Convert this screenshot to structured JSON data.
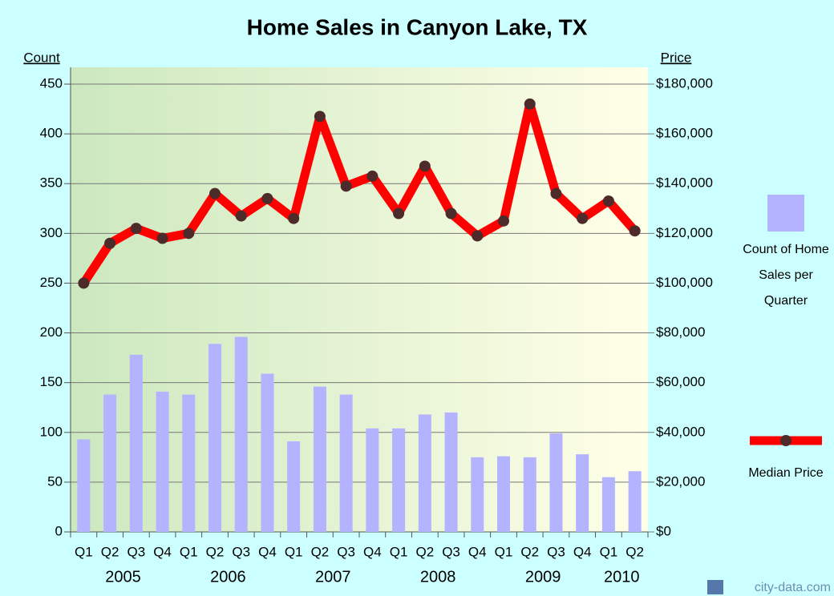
{
  "chart_data": {
    "type": "combo",
    "title": "Home Sales in Canyon Lake, TX",
    "y_label": "Count",
    "y2_label": "Price",
    "watermark": "city-data.com",
    "categories": [
      "Q1",
      "Q2",
      "Q3",
      "Q4",
      "Q1",
      "Q2",
      "Q3",
      "Q4",
      "Q1",
      "Q2",
      "Q3",
      "Q4",
      "Q1",
      "Q2",
      "Q3",
      "Q4",
      "Q1",
      "Q2",
      "Q3",
      "Q4",
      "Q1",
      "Q2"
    ],
    "x_groups": [
      "2005",
      "2006",
      "2007",
      "2008",
      "2009",
      "2010"
    ],
    "series": [
      {
        "name": "Count of Home Sales per Quarter",
        "type": "bar",
        "axis": "y",
        "color": "#b3b3ff",
        "values": [
          93,
          138,
          178,
          141,
          138,
          189,
          196,
          159,
          91,
          146,
          138,
          104,
          104,
          118,
          120,
          75,
          76,
          75,
          99,
          78,
          55,
          61
        ]
      },
      {
        "name": "Median Price",
        "type": "line",
        "axis": "y2",
        "color": "#ff0000",
        "marker_color": "#4d2b2b",
        "values": [
          100000,
          116000,
          122000,
          118000,
          120000,
          136000,
          127000,
          134000,
          126000,
          167000,
          139000,
          143000,
          128000,
          147000,
          128000,
          119000,
          125000,
          172000,
          136000,
          126000,
          133000,
          121000
        ]
      }
    ],
    "ylim": [
      0,
      450
    ],
    "yticks": [
      0,
      50,
      100,
      150,
      200,
      250,
      300,
      350,
      400,
      450
    ],
    "y2lim": [
      0,
      180000
    ],
    "y2ticks": [
      {
        "value": 0,
        "label": "$0"
      },
      {
        "value": 20000,
        "label": "$20,000"
      },
      {
        "value": 40000,
        "label": "$40,000"
      },
      {
        "value": 60000,
        "label": "$60,000"
      },
      {
        "value": 80000,
        "label": "$80,000"
      },
      {
        "value": 100000,
        "label": "$100,000"
      },
      {
        "value": 120000,
        "label": "$120,000"
      },
      {
        "value": 140000,
        "label": "$140,000"
      },
      {
        "value": 160000,
        "label": "$160,000"
      },
      {
        "value": 180000,
        "label": "$180,000"
      }
    ],
    "grid": true
  }
}
